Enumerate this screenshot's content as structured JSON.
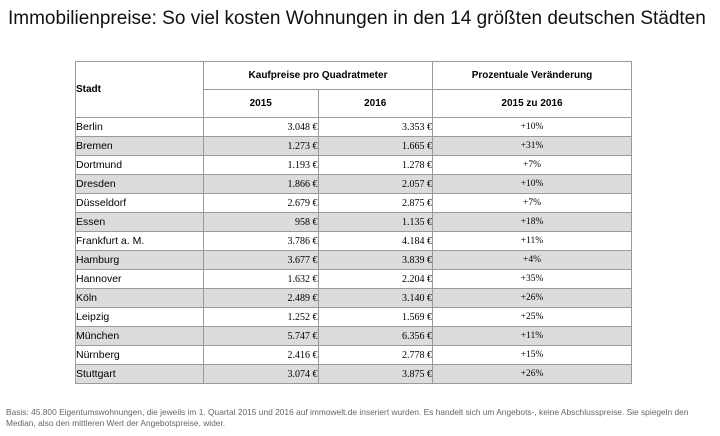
{
  "title": "Immobilienpreise: So viel kosten Wohnungen in den 14 größten deutschen Städten",
  "table": {
    "col_city": "Stadt",
    "col_group_prices": "Kaufpreise pro Quadratmeter",
    "col_group_change": "Prozentuale Veränderung",
    "col_year_a": "2015",
    "col_year_b": "2016",
    "col_change_range": "2015 zu 2016",
    "rows": [
      {
        "city": "Berlin",
        "p2015": "3.048 €",
        "p2016": "3.353 €",
        "change": "+10%"
      },
      {
        "city": "Bremen",
        "p2015": "1.273 €",
        "p2016": "1.665 €",
        "change": "+31%"
      },
      {
        "city": "Dortmund",
        "p2015": "1.193 €",
        "p2016": "1.278 €",
        "change": "+7%"
      },
      {
        "city": "Dresden",
        "p2015": "1.866 €",
        "p2016": "2.057 €",
        "change": "+10%"
      },
      {
        "city": "Düsseldorf",
        "p2015": "2.679 €",
        "p2016": "2.875 €",
        "change": "+7%"
      },
      {
        "city": "Essen",
        "p2015": "958 €",
        "p2016": "1.135 €",
        "change": "+18%"
      },
      {
        "city": "Frankfurt a. M.",
        "p2015": "3.786 €",
        "p2016": "4.184 €",
        "change": "+11%"
      },
      {
        "city": "Hamburg",
        "p2015": "3.677 €",
        "p2016": "3.839 €",
        "change": "+4%"
      },
      {
        "city": "Hannover",
        "p2015": "1.632 €",
        "p2016": "2.204 €",
        "change": "+35%"
      },
      {
        "city": "Köln",
        "p2015": "2.489 €",
        "p2016": "3.140 €",
        "change": "+26%"
      },
      {
        "city": "Leipzig",
        "p2015": "1.252 €",
        "p2016": "1.569 €",
        "change": "+25%"
      },
      {
        "city": "München",
        "p2015": "5.747 €",
        "p2016": "6.356 €",
        "change": "+11%"
      },
      {
        "city": "Nürnberg",
        "p2015": "2.416 €",
        "p2016": "2.778 €",
        "change": "+15%"
      },
      {
        "city": "Stuttgart",
        "p2015": "3.074 €",
        "p2016": "3.875 €",
        "change": "+26%"
      }
    ]
  },
  "footnote": "Basis: 45.800 Eigentumswohnungen, die jeweils im 1. Quartal 2015 und 2016 auf immowelt.de inseriert wurden. Es handelt sich um Angebots-, keine Abschlusspreise. Sie spiegeln den Median, also den mittleren Wert der Angebotspreise, wider.",
  "colors": {
    "shaded_row": "#dcdcdc",
    "border": "#9a9a9a",
    "footnote_text": "#666666"
  }
}
